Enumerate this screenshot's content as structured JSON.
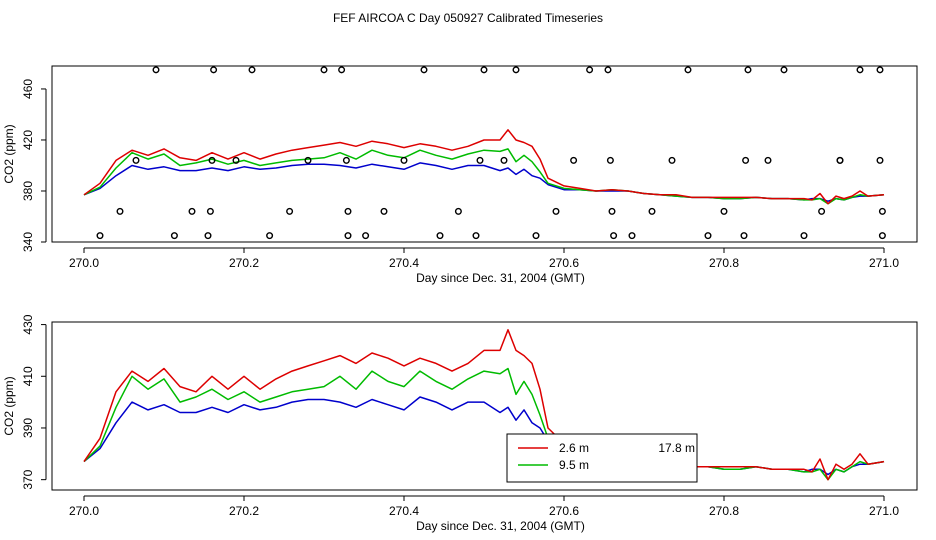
{
  "title": "FEF AIRCOA C  Day 050927  Calibrated Timeseries",
  "colors": {
    "red": "#dd0000",
    "green": "#00bb00",
    "blue": "#0000cc",
    "black": "#000000"
  },
  "chart_data": [
    {
      "type": "line",
      "panel": "top",
      "xlabel": "Day since Dec. 31, 2004 (GMT)",
      "ylabel": "CO2 (ppm)",
      "xlim": [
        270.0,
        271.0
      ],
      "ylim": [
        340,
        478
      ],
      "xticks": [
        "270.0",
        "270.2",
        "270.4",
        "270.6",
        "270.8",
        "271.0"
      ],
      "xtick_values": [
        270.0,
        270.2,
        270.4,
        270.6,
        270.8,
        271.0
      ],
      "yticks": [
        "340",
        "380",
        "420",
        "460"
      ],
      "ytick_values": [
        340,
        380,
        420,
        460
      ],
      "series_keys": [
        "red",
        "green",
        "blue"
      ],
      "points": {
        "name": "calibration points",
        "x": [
          270.02,
          270.045,
          270.065,
          270.09,
          270.113,
          270.135,
          270.155,
          270.158,
          270.16,
          270.162,
          270.19,
          270.21,
          270.232,
          270.257,
          270.28,
          270.3,
          270.322,
          270.328,
          270.33,
          270.33,
          270.352,
          270.375,
          270.4,
          270.425,
          270.445,
          270.468,
          270.49,
          270.495,
          270.5,
          270.525,
          270.54,
          270.565,
          270.59,
          270.612,
          270.632,
          270.655,
          270.658,
          270.66,
          270.662,
          270.685,
          270.71,
          270.735,
          270.755,
          270.78,
          270.8,
          270.825,
          270.827,
          270.83,
          270.855,
          270.875,
          270.9,
          270.922,
          270.945,
          270.945,
          270.97,
          270.995,
          270.995,
          270.998,
          270.998
        ],
        "y": [
          345,
          364,
          404,
          475,
          345,
          364,
          345,
          364,
          404,
          475,
          404,
          475,
          345,
          364,
          404,
          475,
          475,
          404,
          364,
          345,
          345,
          364,
          404,
          475,
          345,
          364,
          345,
          404,
          475,
          404,
          475,
          345,
          364,
          404,
          475,
          475,
          404,
          364,
          345,
          345,
          364,
          404,
          475,
          345,
          364,
          345,
          404,
          475,
          404,
          475,
          345,
          364,
          404,
          404,
          475,
          475,
          404,
          364,
          345
        ]
      }
    },
    {
      "type": "line",
      "panel": "bottom",
      "xlabel": "Day since Dec. 31, 2004 (GMT)",
      "ylabel": "CO2 (ppm)",
      "xlim": [
        270.0,
        271.0
      ],
      "ylim": [
        366,
        431
      ],
      "xticks": [
        "270.0",
        "270.2",
        "270.4",
        "270.6",
        "270.8",
        "271.0"
      ],
      "xtick_values": [
        270.0,
        270.2,
        270.4,
        270.6,
        270.8,
        271.0
      ],
      "yticks": [
        "370",
        "390",
        "410",
        "430"
      ],
      "ytick_values": [
        370,
        390,
        410,
        430
      ],
      "legend": {
        "position": "bottom-center",
        "entries": [
          "2.6 m",
          "9.5 m",
          "17.8 m"
        ]
      },
      "series_keys": [
        "red",
        "green",
        "blue"
      ]
    }
  ],
  "series": [
    {
      "key": "red",
      "name": "2.6 m",
      "x": [
        270.0,
        270.02,
        270.04,
        270.06,
        270.08,
        270.1,
        270.12,
        270.14,
        270.16,
        270.18,
        270.2,
        270.22,
        270.24,
        270.26,
        270.28,
        270.3,
        270.32,
        270.34,
        270.36,
        270.38,
        270.4,
        270.42,
        270.44,
        270.46,
        270.48,
        270.5,
        270.52,
        270.53,
        270.54,
        270.55,
        270.56,
        270.57,
        270.58,
        270.6,
        270.62,
        270.64,
        270.66,
        270.68,
        270.7,
        270.72,
        270.74,
        270.76,
        270.78,
        270.8,
        270.82,
        270.84,
        270.86,
        270.88,
        270.9,
        270.91,
        270.92,
        270.93,
        270.94,
        270.95,
        270.96,
        270.97,
        270.98,
        271.0
      ],
      "y": [
        377,
        386,
        404,
        412,
        408,
        413,
        406,
        404,
        410,
        405,
        410,
        405,
        409,
        412,
        414,
        416,
        418,
        415,
        419,
        417,
        414,
        417,
        415,
        412,
        415,
        420,
        420,
        428,
        420,
        418,
        415,
        405,
        390,
        384,
        382,
        380,
        381,
        380,
        378,
        377,
        377,
        375,
        375,
        375,
        375,
        375,
        374,
        374,
        374,
        373,
        378,
        370,
        376,
        374,
        376,
        380,
        376,
        377
      ]
    },
    {
      "key": "green",
      "name": "9.5 m",
      "x": [
        270.0,
        270.02,
        270.04,
        270.06,
        270.08,
        270.1,
        270.12,
        270.14,
        270.16,
        270.18,
        270.2,
        270.22,
        270.24,
        270.26,
        270.28,
        270.3,
        270.32,
        270.34,
        270.36,
        270.38,
        270.4,
        270.42,
        270.44,
        270.46,
        270.48,
        270.5,
        270.52,
        270.53,
        270.54,
        270.55,
        270.56,
        270.57,
        270.58,
        270.6,
        270.62,
        270.64,
        270.66,
        270.68,
        270.7,
        270.72,
        270.74,
        270.76,
        270.78,
        270.8,
        270.82,
        270.84,
        270.86,
        270.88,
        270.9,
        270.91,
        270.92,
        270.93,
        270.94,
        270.95,
        270.96,
        270.97,
        270.98,
        271.0
      ],
      "y": [
        377,
        383,
        398,
        410,
        405,
        409,
        400,
        402,
        405,
        401,
        404,
        400,
        402,
        404,
        405,
        406,
        410,
        405,
        412,
        408,
        406,
        412,
        408,
        405,
        409,
        412,
        411,
        413,
        403,
        408,
        403,
        395,
        386,
        382,
        381,
        380,
        381,
        380,
        378,
        377,
        376,
        375,
        375,
        374,
        374,
        375,
        374,
        374,
        373,
        373,
        374,
        370,
        374,
        373,
        375,
        377,
        376,
        377
      ]
    },
    {
      "key": "blue",
      "name": "17.8 m",
      "x": [
        270.0,
        270.02,
        270.04,
        270.06,
        270.08,
        270.1,
        270.12,
        270.14,
        270.16,
        270.18,
        270.2,
        270.22,
        270.24,
        270.26,
        270.28,
        270.3,
        270.32,
        270.34,
        270.36,
        270.38,
        270.4,
        270.42,
        270.44,
        270.46,
        270.48,
        270.5,
        270.52,
        270.53,
        270.54,
        270.55,
        270.56,
        270.57,
        270.58,
        270.6,
        270.62,
        270.64,
        270.66,
        270.68,
        270.7,
        270.72,
        270.74,
        270.76,
        270.78,
        270.8,
        270.82,
        270.84,
        270.86,
        270.88,
        270.9,
        270.91,
        270.92,
        270.93,
        270.94,
        270.95,
        270.96,
        270.97,
        270.98,
        271.0
      ],
      "y": [
        377,
        382,
        392,
        400,
        397,
        399,
        396,
        396,
        398,
        396,
        399,
        397,
        398,
        400,
        401,
        401,
        400,
        398,
        401,
        399,
        397,
        402,
        400,
        397,
        400,
        400,
        396,
        398,
        393,
        397,
        392,
        390,
        385,
        381,
        381,
        380,
        380,
        380,
        378,
        377,
        376,
        375,
        375,
        374,
        374,
        375,
        374,
        374,
        373,
        374,
        374,
        372,
        374,
        373,
        375,
        376,
        376,
        377
      ]
    }
  ]
}
